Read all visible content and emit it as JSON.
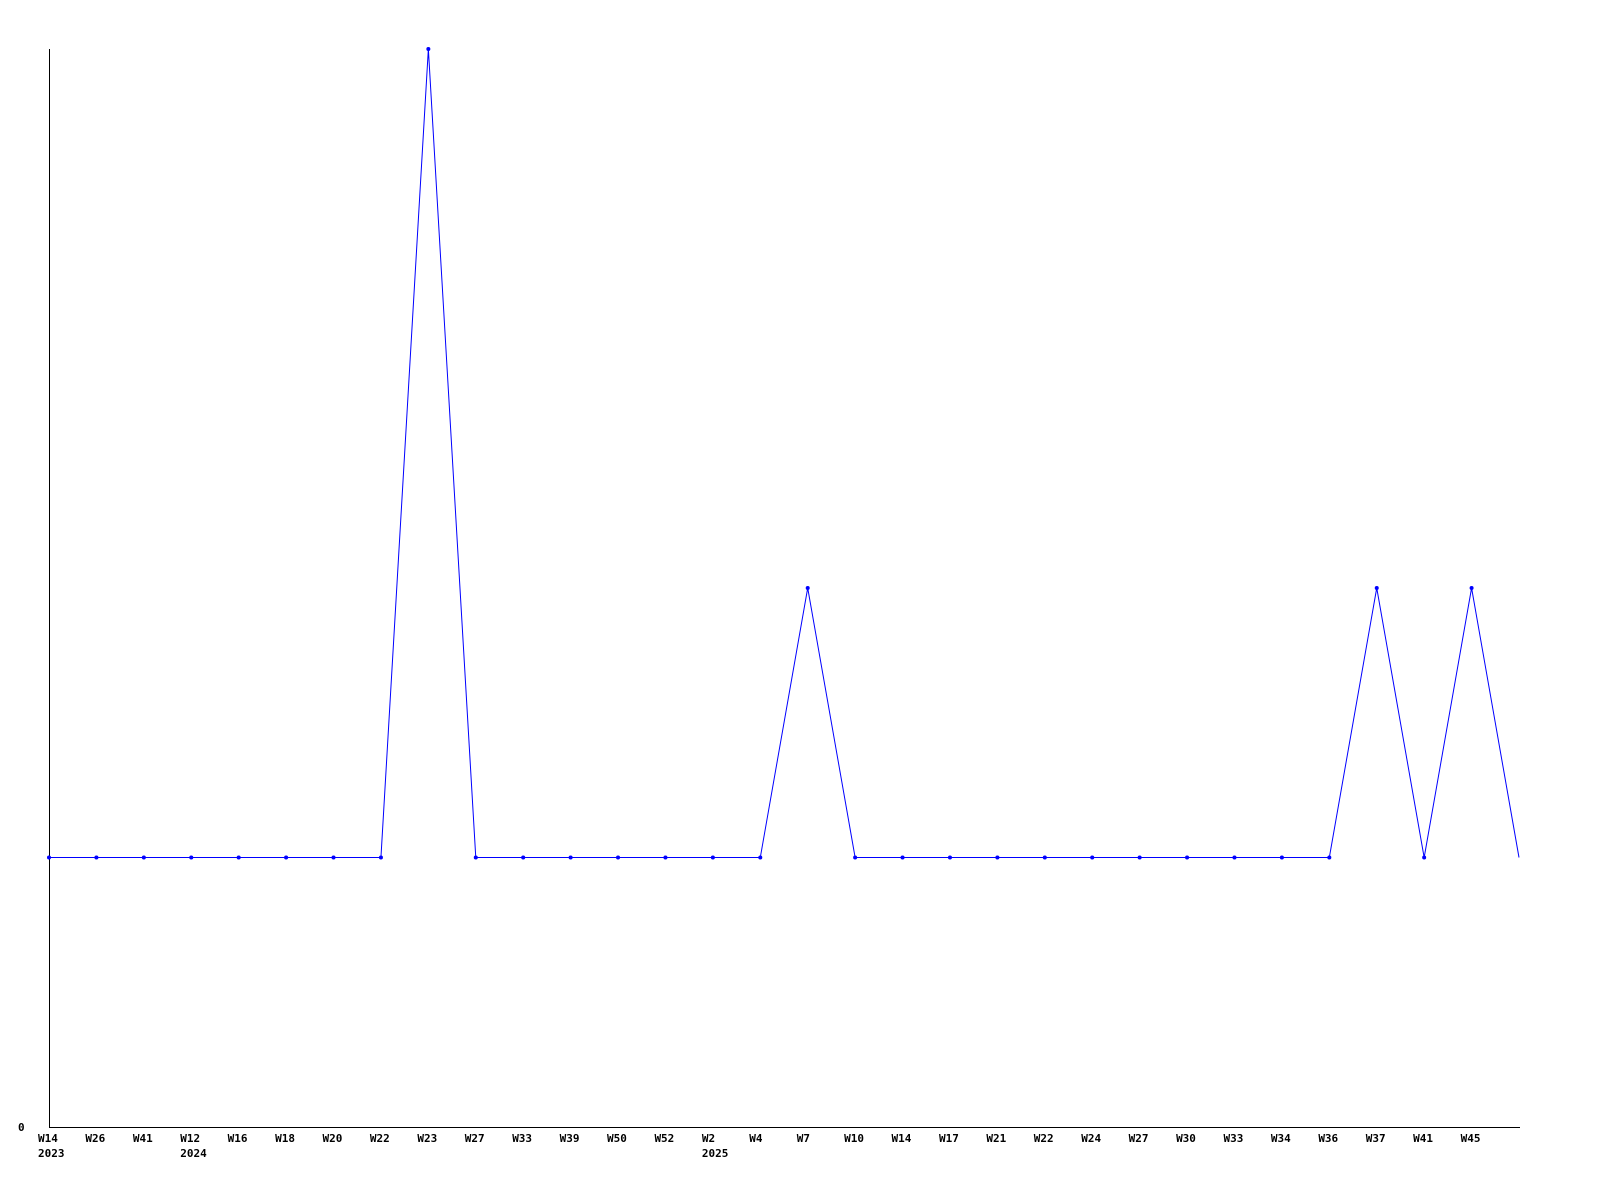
{
  "chart_data": {
    "type": "line",
    "title": "",
    "xlabel": "",
    "ylabel": "",
    "ylim": [
      0,
      4
    ],
    "y_tick_labels": [
      "0"
    ],
    "grid": false,
    "legend": "none",
    "series_color": "#0000ff",
    "categories": [
      "W14",
      "W26",
      "W41",
      "W12",
      "W16",
      "W18",
      "W20",
      "W22",
      "W23",
      "W27",
      "W33",
      "W39",
      "W50",
      "W52",
      "W2",
      "W4",
      "W7",
      "W10",
      "W14",
      "W17",
      "W21",
      "W22",
      "W24",
      "W27",
      "W30",
      "W33",
      "W34",
      "W36",
      "W37",
      "W41",
      "W45",
      ""
    ],
    "year_labels": [
      {
        "index": 0,
        "label": "2023"
      },
      {
        "index": 3,
        "label": "2024"
      },
      {
        "index": 14,
        "label": "2025"
      }
    ],
    "series": [
      {
        "values": [
          1,
          1,
          1,
          1,
          1,
          1,
          1,
          1,
          4,
          1,
          1,
          1,
          1,
          1,
          1,
          1,
          2,
          1,
          1,
          1,
          1,
          1,
          1,
          1,
          1,
          1,
          1,
          1,
          2,
          1,
          2,
          1
        ]
      }
    ]
  }
}
